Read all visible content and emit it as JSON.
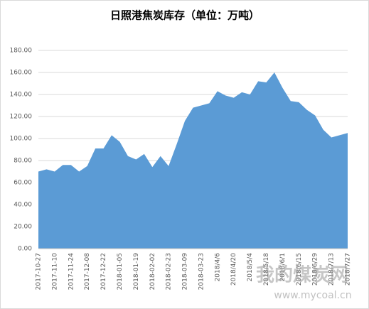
{
  "chart_data": {
    "type": "area",
    "title": "日照港焦炭库存（单位：万吨）",
    "watermark": "我的煤炭网",
    "watermark_url": "www.mycoal.cn",
    "categories": [
      "2017-10-27",
      null,
      "2017-11-10",
      null,
      "2017-11-24",
      null,
      "2017-12-08",
      null,
      "2017-12-22",
      null,
      "2018-01-05",
      null,
      "2018-01-19",
      null,
      "2018-02-02",
      null,
      "2018-02-23",
      null,
      "2018-03-09",
      null,
      "2018-03-23",
      null,
      "2018/4/6",
      null,
      "2018/4/20",
      null,
      "2018/5/4",
      null,
      "2018/5/18",
      null,
      "2018/6/1",
      null,
      "2018/6/15",
      null,
      "2018/6/29",
      null,
      "2018/7/13",
      null,
      "2018/7/27"
    ],
    "values": [
      70,
      72,
      70,
      76,
      76,
      70,
      75,
      91,
      91,
      103,
      97,
      84,
      81,
      86,
      74,
      84,
      75,
      95,
      116,
      128,
      130,
      132,
      143,
      139,
      137,
      142,
      140,
      152,
      151,
      160,
      146,
      134,
      133,
      126,
      121,
      108,
      101,
      103,
      105
    ],
    "color": "#5b9bd5",
    "ylim": [
      0,
      180
    ],
    "yticks": [
      {
        "value": 0,
        "label": "0.00"
      },
      {
        "value": 20,
        "label": "20.00"
      },
      {
        "value": 40,
        "label": "40.00"
      },
      {
        "value": 60,
        "label": "60.00"
      },
      {
        "value": 80,
        "label": "80.00"
      },
      {
        "value": 100,
        "label": "100.00"
      },
      {
        "value": 120,
        "label": "120.00"
      },
      {
        "value": 140,
        "label": "140.00"
      },
      {
        "value": 160,
        "label": "160.00"
      },
      {
        "value": 180,
        "label": "180.00"
      }
    ],
    "grid": true
  }
}
